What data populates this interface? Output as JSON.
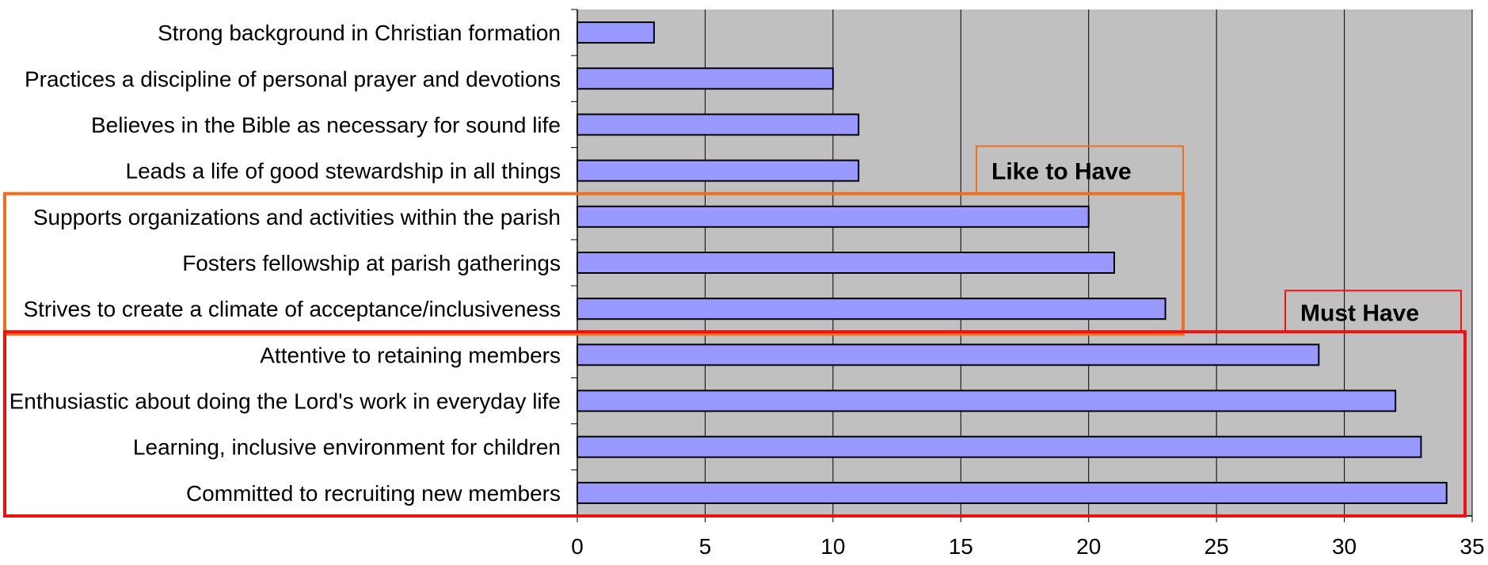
{
  "chart_data": {
    "type": "bar",
    "orientation": "horizontal",
    "categories": [
      "Strong background in Christian formation",
      "Practices a discipline of personal prayer and devotions",
      "Believes in the Bible as necessary for sound life",
      "Leads a life of good stewardship in all things",
      "Supports organizations and activities within the parish",
      "Fosters fellowship at parish gatherings",
      "Strives to create a climate of acceptance/inclusiveness",
      "Attentive to retaining members",
      "Enthusiastic about doing the Lord's work in everyday life",
      "Learning, inclusive environment for children",
      "Committed to recruiting new members"
    ],
    "values": [
      3,
      10,
      11,
      11,
      20,
      21,
      23,
      29,
      32,
      33,
      34
    ],
    "xlim": [
      0,
      35
    ],
    "x_ticks": [
      "0",
      "5",
      "10",
      "15",
      "20",
      "25",
      "30",
      "35"
    ],
    "title": "",
    "xlabel": "",
    "ylabel": "",
    "grid": "vertical",
    "legend": "none",
    "groups": [
      {
        "label": "Like to Have",
        "color": "#F07020",
        "first_category": 4,
        "last_category": 6
      },
      {
        "label": "Must Have",
        "color": "#EE1111",
        "first_category": 7,
        "last_category": 10
      }
    ],
    "colors": {
      "bar": "#9999FF",
      "bar_outline": "#000000",
      "plot_background": "#C0C0C0",
      "gridline": "#000000"
    }
  }
}
